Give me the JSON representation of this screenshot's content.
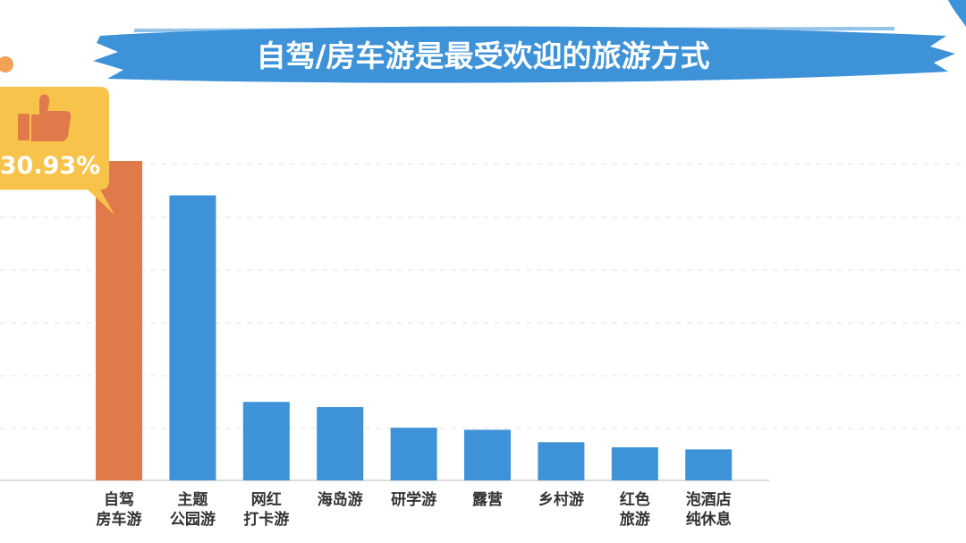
{
  "colors": {
    "highlight_bar": "#E07A4B",
    "bar": "#3D92D8",
    "title_brush": "#3D92D8",
    "badge": "#F7C34B",
    "thumb": "#E07A4B",
    "accent_dot": "#F2A155",
    "grid": "#E6E6E6"
  },
  "chart_data": {
    "type": "bar",
    "title": "自驾/房车游是最受欢迎的旅游方式",
    "xlabel": "",
    "ylabel": "",
    "ylim": [
      0,
      31
    ],
    "grid": true,
    "categories": [
      [
        "自驾",
        "房车游"
      ],
      [
        "主题",
        "公园游"
      ],
      [
        "网红",
        "打卡游"
      ],
      [
        "海岛游"
      ],
      [
        "研学游"
      ],
      [
        "露营"
      ],
      [
        "乡村游"
      ],
      [
        "红色",
        "旅游"
      ],
      [
        "泡酒店",
        "纯休息"
      ]
    ],
    "values": [
      30.93,
      27.6,
      7.6,
      7.1,
      5.1,
      4.9,
      3.7,
      3.2,
      3.0
    ],
    "highlight_index": 0,
    "highlight_label": "30.93%"
  },
  "icons": {
    "badge_icon": "thumbs-up-icon"
  }
}
